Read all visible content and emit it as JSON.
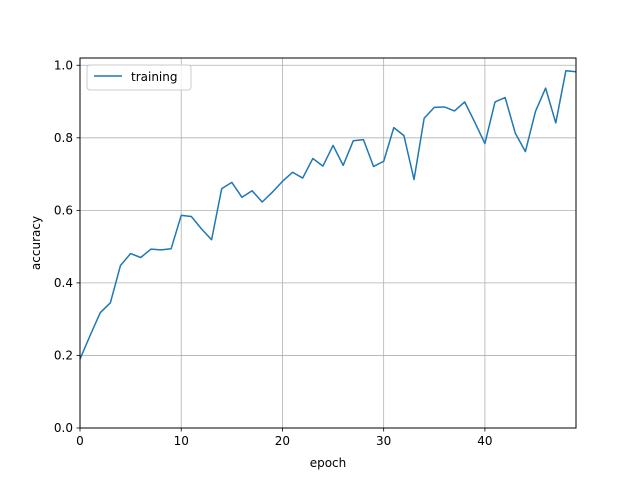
{
  "chart_data": {
    "type": "line",
    "title": "",
    "xlabel": "epoch",
    "ylabel": "accuracy",
    "xlim": [
      0,
      49
    ],
    "ylim": [
      0.0,
      1.02
    ],
    "grid": true,
    "legend_position": "top-left",
    "xticks": [
      0,
      10,
      20,
      30,
      40
    ],
    "xtick_labels": [
      "0",
      "10",
      "20",
      "30",
      "40"
    ],
    "yticks": [
      0.0,
      0.2,
      0.4,
      0.6,
      0.8,
      1.0
    ],
    "ytick_labels": [
      "0.0",
      "0.2",
      "0.4",
      "0.6",
      "0.8",
      "1.0"
    ],
    "series": [
      {
        "name": "training",
        "color": "#1f77b4",
        "x": [
          0,
          1,
          2,
          3,
          4,
          5,
          6,
          7,
          8,
          9,
          10,
          11,
          12,
          13,
          14,
          15,
          16,
          17,
          18,
          19,
          20,
          21,
          22,
          23,
          24,
          25,
          26,
          27,
          28,
          29,
          30,
          31,
          32,
          33,
          34,
          35,
          36,
          37,
          38,
          39,
          40,
          41,
          42,
          43,
          44,
          45,
          46,
          47,
          48,
          49
        ],
        "y": [
          0.19,
          0.255,
          0.318,
          0.345,
          0.448,
          0.481,
          0.47,
          0.493,
          0.491,
          0.494,
          0.586,
          0.583,
          0.549,
          0.519,
          0.66,
          0.677,
          0.636,
          0.654,
          0.623,
          0.65,
          0.68,
          0.705,
          0.689,
          0.743,
          0.722,
          0.779,
          0.724,
          0.792,
          0.795,
          0.721,
          0.735,
          0.828,
          0.806,
          0.685,
          0.854,
          0.884,
          0.885,
          0.874,
          0.899,
          0.843,
          0.784,
          0.899,
          0.911,
          0.813,
          0.762,
          0.873,
          0.937,
          0.841,
          0.985,
          0.982
        ]
      }
    ]
  }
}
